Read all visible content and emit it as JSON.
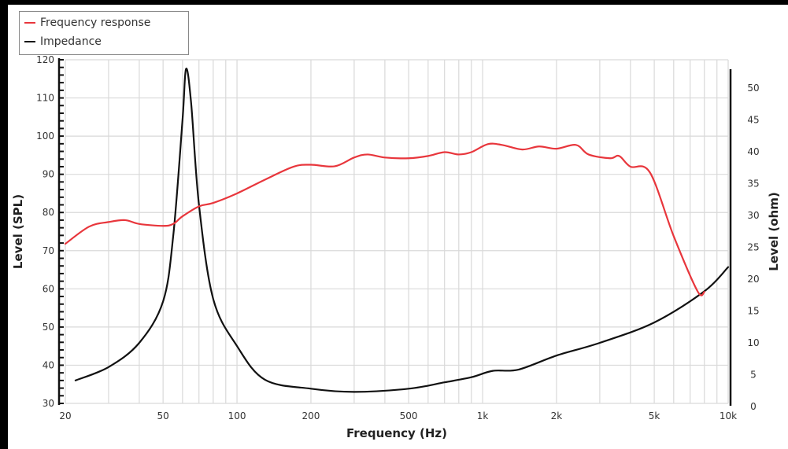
{
  "chart_data": {
    "type": "line",
    "title": "",
    "xlabel": "Frequency (Hz)",
    "ylabel": "Level (SPL)",
    "y2label": "Level (ohm)",
    "xscale": "log",
    "xlim": [
      20,
      10000
    ],
    "ylim": [
      30,
      120
    ],
    "y2lim": [
      0,
      50
    ],
    "grid": true,
    "legend_position": "top-left",
    "x_ticks": [
      20,
      50,
      100,
      200,
      500,
      1000,
      2000,
      5000,
      10000
    ],
    "x_tick_labels": [
      "20",
      "50",
      "100",
      "200",
      "500",
      "1k",
      "2k",
      "5k",
      "10k"
    ],
    "y_ticks": [
      30,
      40,
      50,
      60,
      70,
      80,
      90,
      100,
      110,
      120
    ],
    "y2_ticks": [
      0,
      5,
      10,
      15,
      20,
      25,
      30,
      35,
      40,
      45,
      50
    ],
    "series": [
      {
        "name": "Frequency response",
        "axis": "left",
        "color": "#e8363c",
        "x": [
          20,
          25,
          30,
          35,
          40,
          50,
          55,
          60,
          70,
          80,
          100,
          130,
          170,
          200,
          250,
          300,
          340,
          400,
          500,
          600,
          700,
          800,
          900,
          1050,
          1200,
          1450,
          1700,
          2000,
          2400,
          2700,
          3300,
          3600,
          4000,
          4800,
          6000,
          7500,
          8000
        ],
        "values": [
          71.8,
          76.3,
          77.5,
          78,
          77,
          76.5,
          77,
          79,
          81.6,
          82.5,
          85,
          88.6,
          92,
          92.5,
          92.1,
          94.4,
          95.2,
          94.4,
          94.2,
          94.8,
          95.8,
          95.2,
          95.8,
          97.9,
          97.7,
          96.5,
          97.3,
          96.7,
          97.7,
          95.2,
          94.2,
          94.8,
          92,
          90.5,
          73.8,
          59.4,
          59.2
        ]
      },
      {
        "name": "Impedance",
        "axis": "right",
        "color": "#111111",
        "x": [
          22,
          30,
          40,
          50,
          55,
          60,
          62,
          65,
          70,
          80,
          100,
          130,
          200,
          300,
          500,
          700,
          900,
          1100,
          1400,
          2000,
          3000,
          5000,
          8000,
          10000
        ],
        "values": [
          4.1,
          6.2,
          10,
          16.5,
          26.8,
          45,
          53,
          47.8,
          31.7,
          16.9,
          9.5,
          4.2,
          2.8,
          2.3,
          2.8,
          3.8,
          4.6,
          5.6,
          5.8,
          8,
          10,
          13.2,
          18.1,
          21.9
        ]
      }
    ]
  },
  "legend": {
    "items": [
      {
        "label": "Frequency response",
        "color": "#e8363c"
      },
      {
        "label": "Impedance",
        "color": "#111111"
      }
    ]
  },
  "colors": {
    "grid": "#d9d9d9",
    "axis": "#111111"
  }
}
